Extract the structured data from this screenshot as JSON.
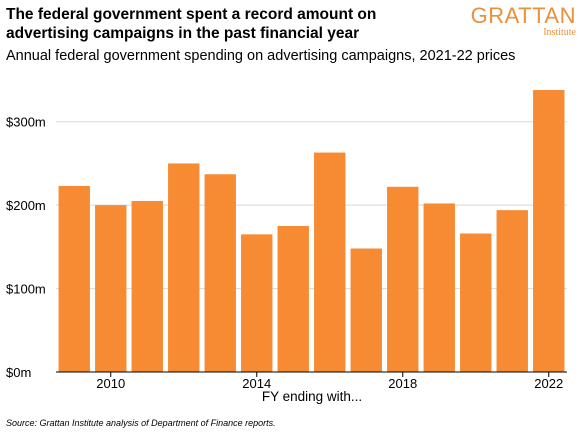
{
  "header": {
    "title": "The federal government spent a record amount on advertising campaigns in the past financial year",
    "subtitle": "Annual federal government spending on advertising campaigns, 2021-22 prices",
    "logo_main": "GRATTAN",
    "logo_sub": "Institute"
  },
  "footer": {
    "source": "Source: Grattan Institute analysis of Department of Finance reports."
  },
  "colors": {
    "bar": "#f68b33",
    "grid": "#d8d8d8",
    "accent": "#e8913a"
  },
  "chart_data": {
    "type": "bar",
    "title": "",
    "xlabel": "FY ending with...",
    "ylabel": "",
    "categories": [
      2009,
      2010,
      2011,
      2012,
      2013,
      2014,
      2015,
      2016,
      2017,
      2018,
      2019,
      2020,
      2021,
      2022
    ],
    "values": [
      223,
      200,
      205,
      250,
      237,
      165,
      175,
      263,
      148,
      222,
      202,
      166,
      194,
      338
    ],
    "ylim": [
      0,
      350
    ],
    "yticks": [
      0,
      100,
      200,
      300
    ],
    "ytick_labels": [
      "$0m",
      "$100m",
      "$200m",
      "$300m"
    ],
    "xticks": [
      2010,
      2014,
      2018,
      2022
    ],
    "xtick_labels": [
      "2010",
      "2014",
      "2018",
      "2022"
    ],
    "grid": true,
    "legend": "none"
  }
}
